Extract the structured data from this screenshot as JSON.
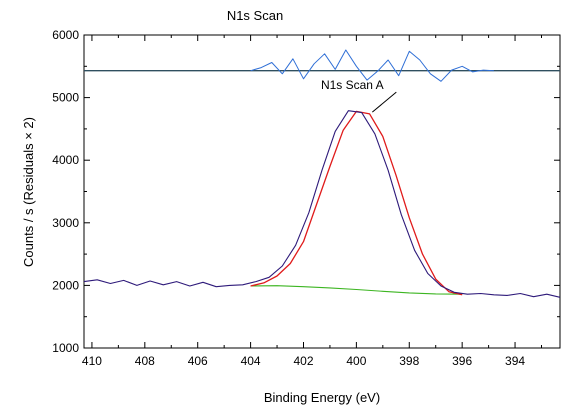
{
  "chart_data": {
    "type": "line",
    "title": "N1s Scan",
    "xlabel": "Binding Energy (eV)",
    "ylabel": "Counts / s  (Residuals × 2)",
    "xlim": [
      410.3,
      392.3
    ],
    "ylim": [
      1000,
      6000
    ],
    "x_reversed": true,
    "x_ticks": [
      410,
      408,
      406,
      404,
      402,
      400,
      398,
      396,
      394
    ],
    "y_ticks": [
      1000,
      2000,
      3000,
      4000,
      5000,
      6000
    ],
    "annotation": {
      "text": "N1s Scan A",
      "x": 399.7,
      "y": 4800
    },
    "residual_baseline": 5430,
    "colors": {
      "raw": "#2e1a7a",
      "envelope": "#e01b1b",
      "background": "#3cb521",
      "residual": "#2f6fd6",
      "residual_baseline": "#2f4f5f"
    },
    "series": [
      {
        "key": "raw",
        "x": [
          410.3,
          409.8,
          409.3,
          408.8,
          408.3,
          407.8,
          407.3,
          406.8,
          406.3,
          405.8,
          405.3,
          404.8,
          404.3,
          403.8,
          403.3,
          402.8,
          402.3,
          401.8,
          401.3,
          400.8,
          400.3,
          399.8,
          399.3,
          398.8,
          398.3,
          397.8,
          397.3,
          396.8,
          396.3,
          395.8,
          395.3,
          394.8,
          394.3,
          393.8,
          393.3,
          392.8,
          392.3
        ],
        "y": [
          2060,
          2090,
          2030,
          2080,
          2000,
          2070,
          2010,
          2060,
          1990,
          2050,
          1980,
          2000,
          2010,
          2060,
          2130,
          2310,
          2640,
          3160,
          3840,
          4460,
          4790,
          4760,
          4420,
          3840,
          3130,
          2560,
          2190,
          1990,
          1890,
          1860,
          1870,
          1850,
          1840,
          1870,
          1820,
          1860,
          1810
        ]
      },
      {
        "key": "envelope",
        "x": [
          404.0,
          403.5,
          403.0,
          402.5,
          402.0,
          401.5,
          401.0,
          400.5,
          400.0,
          399.5,
          399.0,
          398.5,
          398.0,
          397.5,
          397.0,
          396.5,
          396.0
        ],
        "y": [
          1990,
          2040,
          2150,
          2350,
          2700,
          3300,
          3900,
          4480,
          4780,
          4740,
          4380,
          3760,
          3080,
          2500,
          2100,
          1900,
          1850
        ]
      },
      {
        "key": "background",
        "x": [
          404.0,
          403.0,
          402.0,
          401.0,
          400.0,
          399.0,
          398.0,
          397.0,
          396.0
        ],
        "y": [
          1990,
          1995,
          1980,
          1960,
          1935,
          1905,
          1880,
          1865,
          1860
        ]
      },
      {
        "key": "residual",
        "x": [
          404.0,
          403.6,
          403.2,
          402.8,
          402.4,
          402.0,
          401.6,
          401.2,
          400.8,
          400.4,
          400.0,
          399.6,
          399.2,
          398.8,
          398.4,
          398.0,
          397.6,
          397.2,
          396.8,
          396.4,
          396.0,
          395.6,
          395.2,
          394.8
        ],
        "y": [
          5430,
          5480,
          5560,
          5380,
          5620,
          5300,
          5540,
          5700,
          5450,
          5760,
          5500,
          5280,
          5420,
          5600,
          5350,
          5740,
          5600,
          5380,
          5260,
          5440,
          5500,
          5410,
          5440,
          5430
        ]
      }
    ]
  }
}
